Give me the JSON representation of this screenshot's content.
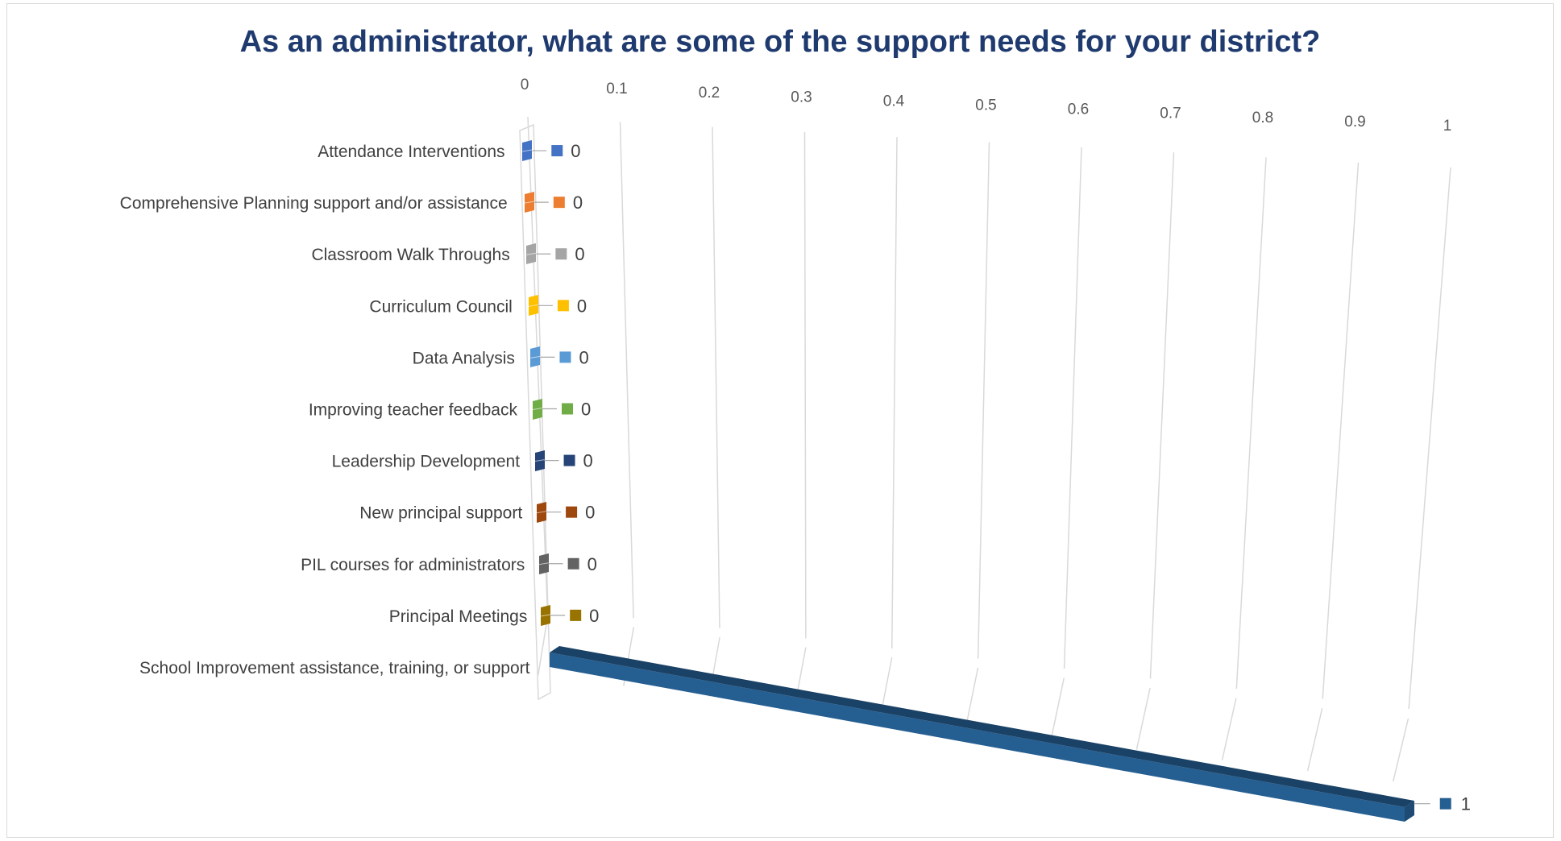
{
  "chart_data": {
    "type": "bar",
    "orientation": "horizontal",
    "style": "3d",
    "title": "As an administrator, what are some of the support needs for your district?",
    "xlabel": "",
    "ylabel": "",
    "xlim": [
      0,
      1
    ],
    "xticks": [
      "0",
      "0.1",
      "0.2",
      "0.3",
      "0.4",
      "0.5",
      "0.6",
      "0.7",
      "0.8",
      "0.9",
      "1"
    ],
    "grid": true,
    "legend": "none",
    "categories": [
      "Attendance Interventions",
      "Comprehensive Planning support and/or assistance",
      "Classroom Walk Throughs",
      "Curriculum Council",
      "Data Analysis",
      "Improving teacher feedback",
      "Leadership Development",
      "New principal support",
      "PIL courses for administrators",
      "Principal Meetings",
      "School Improvement assistance, training, or support"
    ],
    "values": [
      0,
      0,
      0,
      0,
      0,
      0,
      0,
      0,
      0,
      0,
      1
    ],
    "data_labels": [
      "0",
      "0",
      "0",
      "0",
      "0",
      "0",
      "0",
      "0",
      "0",
      "0",
      "1"
    ],
    "colors": [
      "#4472c4",
      "#ed7d31",
      "#a5a5a5",
      "#ffc000",
      "#5b9bd5",
      "#70ad47",
      "#264478",
      "#9e480e",
      "#636363",
      "#997300",
      "#255e91"
    ]
  }
}
